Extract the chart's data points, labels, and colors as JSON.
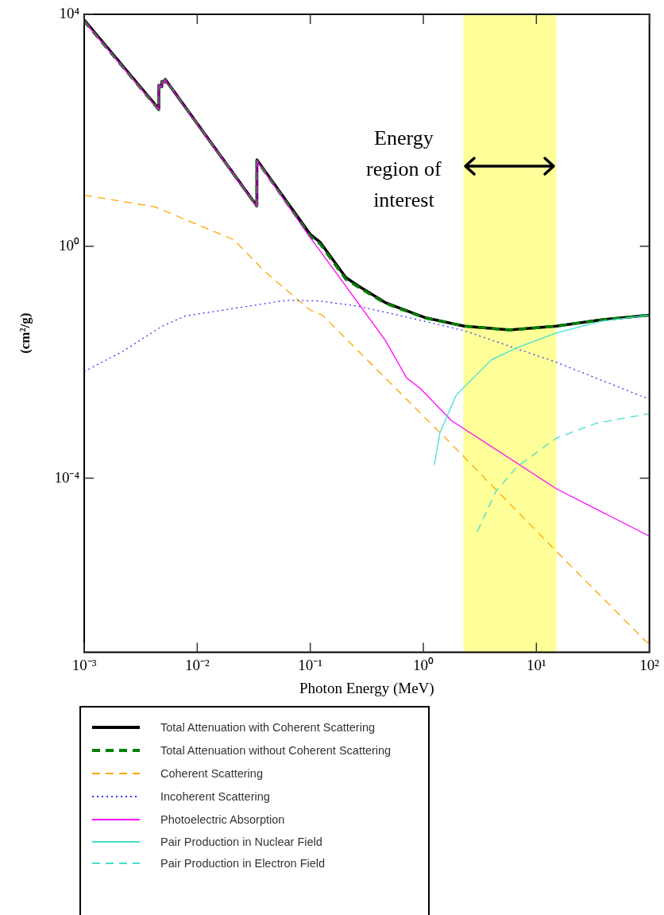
{
  "chart_data": {
    "type": "line",
    "xlabel": "Photon Energy (MeV)",
    "ylabel": "(cm²/g)",
    "log": "xy",
    "grid": false,
    "legend": "bottom",
    "xlim": [
      0.001,
      100
    ],
    "xticks": [
      {
        "value": 0.001,
        "label": "10⁻³"
      },
      {
        "value": 0.01,
        "label": "10⁻²"
      },
      {
        "value": 0.1,
        "label": "10⁻¹"
      },
      {
        "value": 1,
        "label": "10⁰"
      },
      {
        "value": 10,
        "label": "10¹"
      },
      {
        "value": 100,
        "label": "10²"
      }
    ],
    "ylim": [
      1e-07,
      10000
    ],
    "yticks": [
      {
        "value": 10000,
        "label": "10⁴"
      },
      {
        "value": 1,
        "label": "10⁰"
      },
      {
        "value": 0.0001,
        "label": "10⁻⁴"
      }
    ],
    "bands": [
      {
        "axis": "x",
        "from": 2.26,
        "to": 15,
        "label": "Energy region of interest",
        "color": "#ffff99"
      }
    ],
    "series": [
      {
        "name": "Total Attenuation with Coherent Scattering",
        "color": "#000000",
        "line_style": "solid",
        "x": [
          0.001,
          0.00456,
          0.00457,
          0.00485,
          0.00486,
          0.00519,
          0.0052,
          0.0336,
          0.0337,
          0.1,
          0.122,
          0.206,
          0.263,
          0.46,
          1.03,
          2.3,
          5.8,
          15,
          37.6,
          100
        ],
        "values": [
          8000,
          234,
          600,
          560,
          700,
          680,
          760,
          5.0,
          31,
          1.6,
          1.18,
          0.29,
          0.21,
          0.107,
          0.059,
          0.042,
          0.036,
          0.042,
          0.054,
          0.065
        ]
      },
      {
        "name": "Total Attenuation without Coherent Scattering",
        "color": "#008000",
        "line_style": "dashed",
        "x": [
          0.001,
          0.00456,
          0.00457,
          0.00485,
          0.00486,
          0.00519,
          0.0052,
          0.0336,
          0.0337,
          0.1,
          0.122,
          0.206,
          0.263,
          0.46,
          1.03,
          2.3,
          5.8,
          15,
          37.6,
          100
        ],
        "values": [
          7600,
          226,
          590,
          550,
          690,
          670,
          750,
          4.9,
          30,
          1.5,
          1.1,
          0.27,
          0.2,
          0.104,
          0.058,
          0.042,
          0.036,
          0.042,
          0.054,
          0.065
        ]
      },
      {
        "name": "Coherent Scattering",
        "color": "#ffa500",
        "line_style": "dashed",
        "x": [
          0.001,
          0.0042,
          0.021,
          0.04,
          0.1,
          0.128,
          1.29,
          1.5,
          15,
          94,
          100
        ],
        "values": [
          7.6,
          4.8,
          1.3,
          0.36,
          0.079,
          0.065,
          0.00072,
          0.00054,
          5.5e-06,
          1.5e-07,
          1.4e-07
        ]
      },
      {
        "name": "Incoherent Scattering",
        "color": "#3333ff",
        "line_style": "dotted",
        "x": [
          0.001,
          0.0022,
          0.0049,
          0.0079,
          0.061,
          0.12,
          0.26,
          0.6,
          2.3,
          15,
          100
        ],
        "values": [
          0.0069,
          0.0155,
          0.042,
          0.063,
          0.117,
          0.114,
          0.093,
          0.065,
          0.035,
          0.01,
          0.0023
        ]
      },
      {
        "name": "Photoelectric Absorption",
        "color": "#ff00ff",
        "line_style": "solid",
        "x": [
          0.001,
          0.00456,
          0.00457,
          0.00485,
          0.00486,
          0.00519,
          0.0052,
          0.0336,
          0.0337,
          0.1,
          0.12,
          0.46,
          0.71,
          0.93,
          1.78,
          15,
          100
        ],
        "values": [
          7600,
          226,
          590,
          550,
          690,
          670,
          750,
          4.9,
          30,
          1.4,
          0.87,
          0.024,
          0.0054,
          0.0036,
          0.00098,
          6.6e-05,
          1e-05
        ]
      },
      {
        "name": "Pair Production in Nuclear Field",
        "color": "#40e0d0",
        "line_style": "solid",
        "x": [
          1.25,
          1.4,
          1.95,
          4,
          6.8,
          15,
          37.6,
          100
        ],
        "values": [
          0.00017,
          0.0006,
          0.0027,
          0.011,
          0.018,
          0.032,
          0.051,
          0.065
        ]
      },
      {
        "name": "Pair Production in Electron Field",
        "color": "#40e0d0",
        "line_style": "dashed",
        "x": [
          3.0,
          4.4,
          6.8,
          15,
          34,
          100
        ],
        "values": [
          1.2e-05,
          6e-05,
          0.00016,
          0.00049,
          0.00089,
          0.0013
        ]
      }
    ]
  }
}
